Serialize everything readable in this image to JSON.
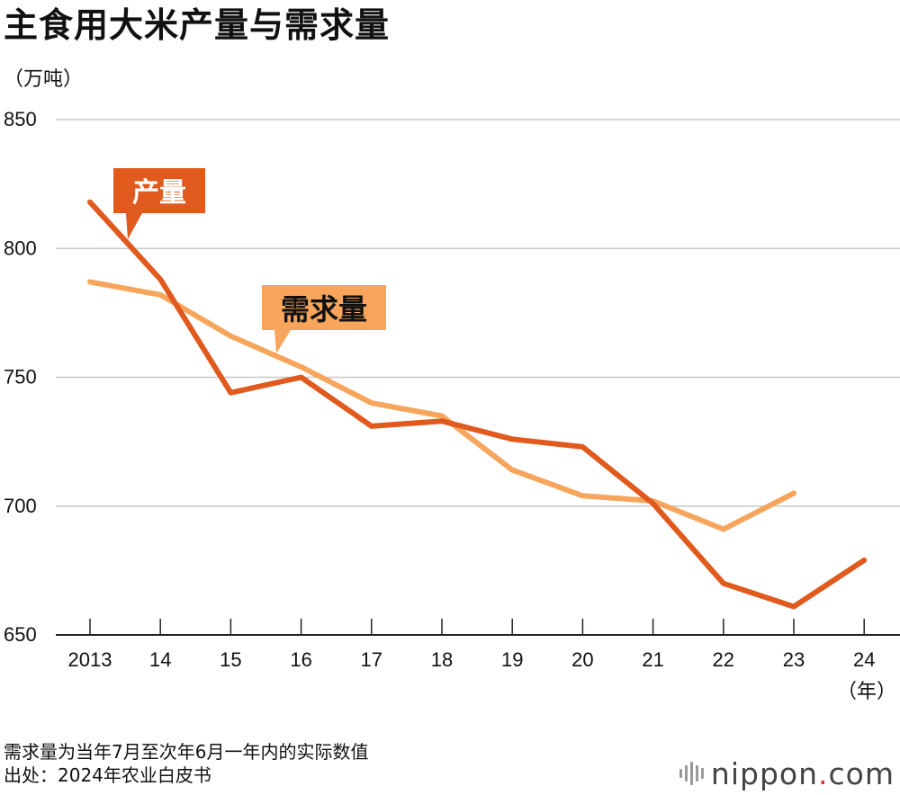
{
  "title": "主食用大米产量与需求量",
  "unit_label": "（万吨）",
  "chart_data": {
    "type": "line",
    "title": "主食用大米产量与需求量",
    "ylabel": "（万吨）",
    "xlabel": "（年）",
    "ylim": [
      650,
      850
    ],
    "yticks": [
      650,
      700,
      750,
      800,
      850
    ],
    "categories": [
      "2013",
      "14",
      "15",
      "16",
      "17",
      "18",
      "19",
      "20",
      "21",
      "22",
      "23",
      "24"
    ],
    "series": [
      {
        "name": "需求量",
        "color": "#f7a55c",
        "values": [
          787,
          782,
          766,
          754,
          740,
          735,
          714,
          704,
          702,
          691,
          705,
          null
        ]
      },
      {
        "name": "产量",
        "color": "#e05a1e",
        "values": [
          818,
          788,
          744,
          750,
          731,
          733,
          726,
          723,
          701,
          670,
          661,
          679
        ]
      }
    ],
    "grid": true,
    "annotations": [
      {
        "text": "产量",
        "series": "产量"
      },
      {
        "text": "需求量",
        "series": "需求量"
      }
    ]
  },
  "footnote": "需求量为当年7月至次年6月一年内的实际数值",
  "source": "出处：2024年农业白皮书",
  "brand": {
    "name": "nippon",
    "dot": ".",
    "suffix": "com"
  }
}
